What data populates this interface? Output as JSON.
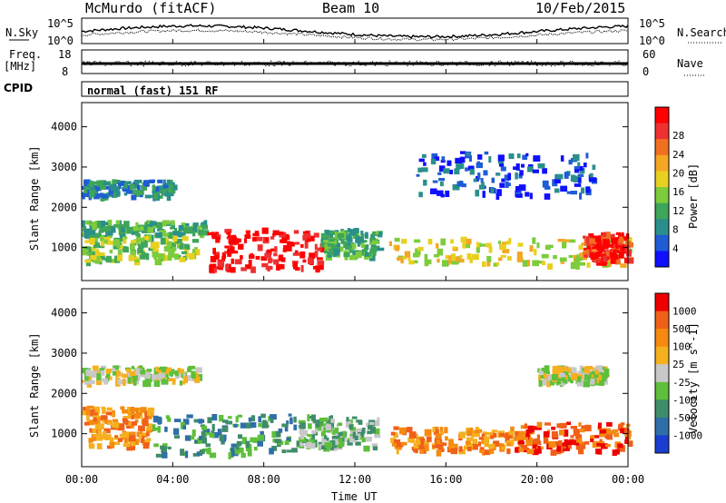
{
  "header": {
    "station": "McMurdo (fitACF)",
    "beam": "Beam 10",
    "date": "10/Feb/2015"
  },
  "noise_panel": {
    "left_label": "N.Sky",
    "right_label": "N.Search",
    "left_ticks": [
      "10^5",
      "10^0"
    ],
    "right_ticks": [
      "10^5",
      "10^0"
    ]
  },
  "freq_panel": {
    "left_label": "Freq.",
    "left_unit": "[MHz]",
    "left_ticks": [
      "18",
      "8"
    ],
    "right_label": "Nave",
    "right_ticks": [
      "60",
      "0"
    ]
  },
  "cpid": {
    "label": "CPID",
    "value": "normal (fast) 151 RF"
  },
  "x_axis": {
    "label": "Time UT",
    "ticks": [
      "00:00",
      "04:00",
      "08:00",
      "12:00",
      "16:00",
      "20:00",
      "00:00"
    ]
  },
  "chart_data": [
    {
      "type": "heatmap",
      "panel": "power",
      "ylabel": "Slant Range [km]",
      "yticks": [
        1000,
        2000,
        3000,
        4000
      ],
      "ylim": [
        180,
        4600
      ],
      "xlim_hours": [
        0,
        24
      ],
      "colorbar": {
        "label": "Power [dB]",
        "ticks": [
          "4",
          "8",
          "12",
          "16",
          "20",
          "24",
          "28"
        ],
        "colors": [
          "#1010ff",
          "#1f5cd6",
          "#2a8f8a",
          "#3ea55a",
          "#7ccc3c",
          "#e8d020",
          "#f5a623",
          "#f07020",
          "#ee3030",
          "#ff0000"
        ]
      },
      "regions": [
        {
          "t0": 0.0,
          "t1": 4.0,
          "r0": 2300,
          "r1": 2700,
          "level": 2
        },
        {
          "t0": 0.0,
          "t1": 5.5,
          "r0": 1300,
          "r1": 1700,
          "level": 3
        },
        {
          "t0": 0.0,
          "t1": 5.0,
          "r0": 700,
          "r1": 1300,
          "level": 4
        },
        {
          "t0": 5.5,
          "t1": 10.5,
          "r0": 500,
          "r1": 1500,
          "level": 9
        },
        {
          "t0": 10.5,
          "t1": 13.0,
          "r0": 800,
          "r1": 1500,
          "level": 3
        },
        {
          "t0": 13.5,
          "t1": 24.0,
          "r0": 600,
          "r1": 1300,
          "level": 5
        },
        {
          "t0": 14.5,
          "t1": 22.5,
          "r0": 2300,
          "r1": 3400,
          "level": 1
        },
        {
          "t0": 22.0,
          "t1": 24.0,
          "r0": 700,
          "r1": 1400,
          "level": 8
        }
      ]
    },
    {
      "type": "heatmap",
      "panel": "velocity",
      "ylabel": "Slant Range [km]",
      "yticks": [
        1000,
        2000,
        3000,
        4000
      ],
      "ylim": [
        180,
        4600
      ],
      "xlim_hours": [
        0,
        24
      ],
      "colorbar": {
        "label": "Velocity [m s^-1]",
        "ticks": [
          "1000",
          "500",
          "100",
          "25",
          "-25",
          "-100",
          "-500",
          "-1000"
        ],
        "colors": [
          "#1a3fd0",
          "#2f6fa8",
          "#3f8c6a",
          "#5dbf3a",
          "#c8c8c8",
          "#f5b020",
          "#f58a10",
          "#f06018",
          "#ee0000"
        ]
      },
      "regions": [
        {
          "t0": 0.0,
          "t1": 3.0,
          "r0": 700,
          "r1": 1700,
          "level": 6
        },
        {
          "t0": 0.0,
          "t1": 5.0,
          "r0": 2300,
          "r1": 2700,
          "level": 4
        },
        {
          "t0": 3.0,
          "t1": 9.5,
          "r0": 500,
          "r1": 1500,
          "level": 2
        },
        {
          "t0": 9.5,
          "t1": 13.0,
          "r0": 700,
          "r1": 1500,
          "level": 3
        },
        {
          "t0": 13.5,
          "t1": 19.0,
          "r0": 600,
          "r1": 1200,
          "level": 6
        },
        {
          "t0": 19.0,
          "t1": 24.0,
          "r0": 600,
          "r1": 1300,
          "level": 7
        },
        {
          "t0": 20.0,
          "t1": 23.0,
          "r0": 2300,
          "r1": 2700,
          "level": 4
        }
      ]
    }
  ]
}
